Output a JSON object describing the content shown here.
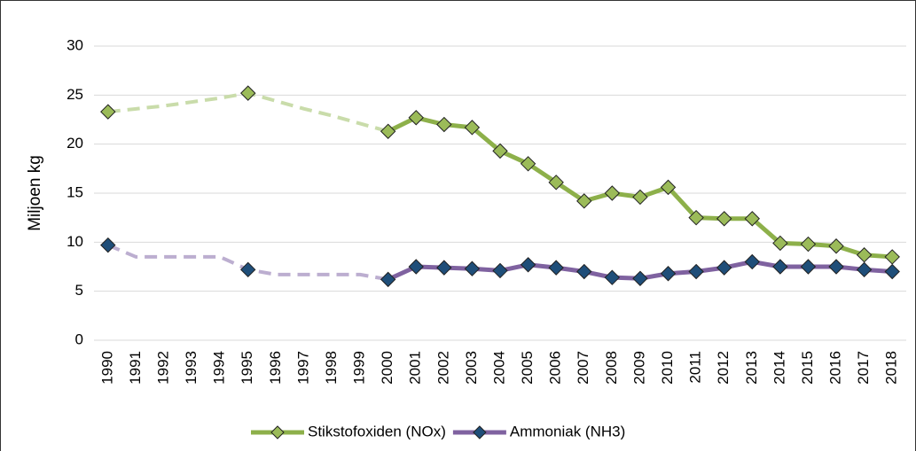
{
  "chart_data": {
    "type": "line",
    "y_label": "Miljoen kg",
    "categories": [
      "1990",
      "1991",
      "1992",
      "1993",
      "1994",
      "1995",
      "1996",
      "1997",
      "1998",
      "1999",
      "2000",
      "2001",
      "2002",
      "2003",
      "2004",
      "2005",
      "2006",
      "2007",
      "2008",
      "2009",
      "2010",
      "2011",
      "2012",
      "2013",
      "2014",
      "2015",
      "2016",
      "2017",
      "2018"
    ],
    "ylim": [
      0,
      30
    ],
    "yticks": [
      0,
      5,
      10,
      15,
      20,
      25,
      30
    ],
    "grid": true,
    "legend": "bottom",
    "series": [
      {
        "name": "Stikstofoxiden (NOx)",
        "color": "#8db04a",
        "marker_color": "#9bbb59",
        "estimated_color": "#c9dcaa",
        "values": [
          23.3,
          null,
          null,
          null,
          null,
          25.2,
          null,
          null,
          null,
          null,
          21.3,
          22.7,
          22.0,
          21.7,
          19.3,
          18.0,
          16.1,
          14.2,
          15.0,
          14.6,
          15.6,
          12.5,
          12.4,
          12.4,
          9.9,
          9.8,
          9.6,
          8.7,
          8.5
        ],
        "estimated_values": [
          23.3,
          23.6,
          23.9,
          24.3,
          24.7,
          25.2,
          24.4,
          23.6,
          22.9,
          22.1,
          21.3,
          null,
          null,
          null,
          null,
          null,
          null,
          null,
          null,
          null,
          null,
          null,
          null,
          null,
          null,
          null,
          null,
          null,
          null
        ]
      },
      {
        "name": "Ammoniak (NH3)",
        "color": "#7f62a0",
        "marker_color": "#1f4e79",
        "estimated_color": "#bcaed0",
        "values": [
          9.7,
          null,
          null,
          null,
          null,
          7.2,
          null,
          null,
          null,
          null,
          6.2,
          7.5,
          7.4,
          7.3,
          7.1,
          7.7,
          7.4,
          7.0,
          6.4,
          6.3,
          6.8,
          7.0,
          7.4,
          8.0,
          7.5,
          7.5,
          7.5,
          7.2,
          7.0
        ],
        "estimated_values": [
          9.7,
          8.5,
          8.5,
          8.5,
          8.5,
          7.2,
          6.7,
          6.7,
          6.7,
          6.7,
          6.2,
          null,
          null,
          null,
          null,
          null,
          null,
          null,
          null,
          null,
          null,
          null,
          null,
          null,
          null,
          null,
          null,
          null,
          null
        ]
      }
    ]
  }
}
